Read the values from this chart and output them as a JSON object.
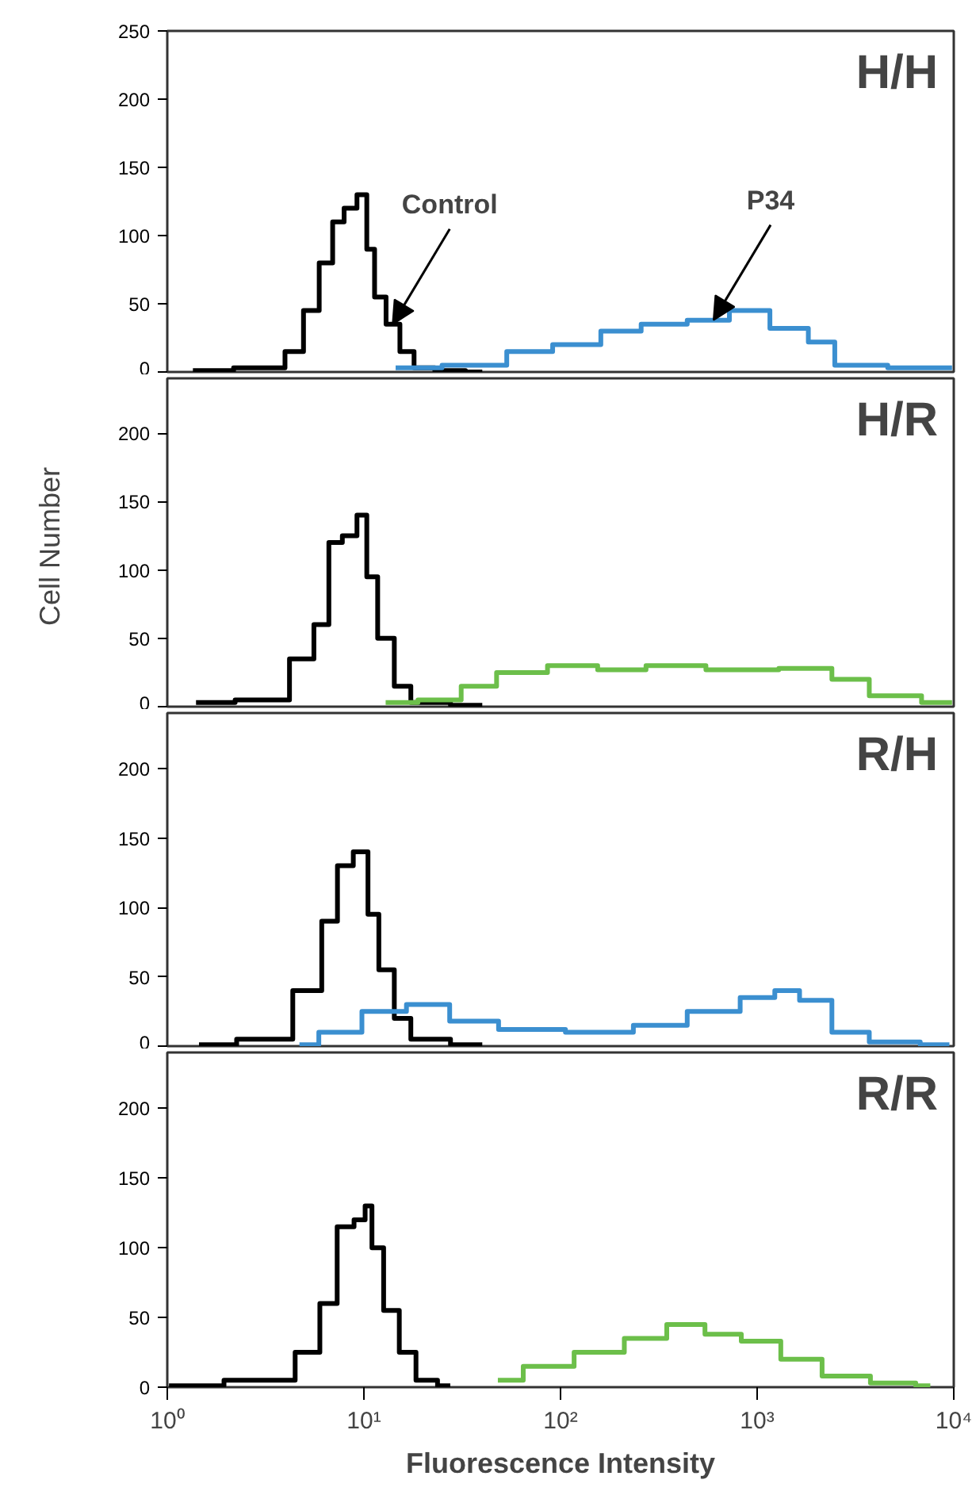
{
  "chart_data": [
    {
      "type": "step",
      "title": "H/H",
      "xlim": [
        1,
        10000
      ],
      "ylim": [
        0,
        250
      ],
      "yticks": [
        0,
        50,
        100,
        150,
        200,
        250
      ],
      "log": "x",
      "tick_labels": "y",
      "annotations": [
        {
          "text": "Control",
          "x": 14,
          "y": 35
        },
        {
          "text": "P34",
          "x": 600,
          "y": 38
        }
      ],
      "series": [
        {
          "color": "#000000",
          "x": [
            1.35,
            3.5,
            4.5,
            5.4,
            6.5,
            7.4,
            8.5,
            10,
            10.7,
            12,
            14,
            16.6,
            19.5,
            27,
            40
          ],
          "values": [
            1,
            3,
            15,
            45,
            80,
            110,
            120,
            130,
            90,
            55,
            35,
            15,
            3,
            1,
            0
          ]
        },
        {
          "color": "#3b8fd0",
          "x": [
            14.5,
            43,
            66,
            126,
            204,
            324,
            600,
            870,
            1550,
            2140,
            2880,
            7400,
            9800
          ],
          "values": [
            3,
            5,
            15,
            20,
            30,
            35,
            38,
            45,
            32,
            22,
            5,
            3,
            3
          ]
        }
      ]
    },
    {
      "type": "step",
      "title": "H/R",
      "ylabel": "Cell  Number",
      "xlim": [
        1,
        10000
      ],
      "ylim": [
        0,
        240
      ],
      "yticks": [
        0,
        50,
        100,
        150,
        200
      ],
      "log": "x",
      "tick_labels": "y",
      "series": [
        {
          "color": "#000000",
          "x": [
            1.4,
            3.5,
            5,
            6.2,
            7.1,
            8.5,
            10,
            10.7,
            12.9,
            15.8,
            19,
            40
          ],
          "values": [
            3,
            5,
            35,
            60,
            120,
            125,
            140,
            95,
            50,
            15,
            3,
            1
          ]
        },
        {
          "color": "#6cbf4a",
          "x": [
            12.9,
            27.5,
            35.5,
            63,
            117,
            204,
            363,
            830,
            2000,
            2880,
            4800,
            9800
          ],
          "values": [
            3,
            5,
            15,
            25,
            30,
            27,
            30,
            27,
            28,
            20,
            8,
            3
          ]
        }
      ]
    },
    {
      "type": "step",
      "title": "R/H",
      "xlim": [
        1,
        10000
      ],
      "ylim": [
        0,
        240
      ],
      "yticks": [
        0,
        50,
        100,
        150,
        200
      ],
      "log": "x",
      "tick_labels": "y",
      "series": [
        {
          "color": "#000000",
          "x": [
            1.45,
            3.5,
            5.4,
            6.9,
            7.8,
            10,
            11,
            12.9,
            15.8,
            19,
            40
          ],
          "values": [
            1,
            5,
            40,
            90,
            130,
            140,
            95,
            55,
            20,
            5,
            1
          ]
        },
        {
          "color": "#3b8fd0",
          "x": [
            4.7,
            7.4,
            12.9,
            21,
            35.5,
            66,
            170,
            324,
            600,
            1120,
            1350,
            2000,
            2880,
            4800,
            9500
          ],
          "values": [
            1,
            10,
            25,
            30,
            18,
            12,
            10,
            15,
            25,
            35,
            40,
            33,
            10,
            3,
            1
          ]
        }
      ]
    },
    {
      "type": "step",
      "title": "R/R",
      "xlabel": "Fluorescence Intensity",
      "xlim": [
        1,
        10000
      ],
      "ylim": [
        0,
        240
      ],
      "yticks": [
        0,
        50,
        100,
        150,
        200
      ],
      "log": "x",
      "xticks": [
        {
          "value": 1,
          "label": "10⁰"
        },
        {
          "value": 10,
          "label": "10¹"
        },
        {
          "value": 100,
          "label": "10²"
        },
        {
          "value": 1000,
          "label": "10³"
        },
        {
          "value": 10000,
          "label": "10⁴"
        }
      ],
      "series": [
        {
          "color": "#000000",
          "x": [
            1.02,
            3.7,
            5.4,
            6.6,
            8.1,
            9.8,
            10.5,
            11.5,
            13.8,
            16.6,
            20.4,
            27.5
          ],
          "values": [
            1,
            5,
            25,
            60,
            115,
            120,
            130,
            100,
            55,
            25,
            5,
            1
          ]
        },
        {
          "color": "#6cbf4a",
          "x": [
            48,
            87,
            158,
            282,
            427,
            690,
            1000,
            1740,
            2630,
            5400,
            7600
          ],
          "values": [
            5,
            15,
            25,
            35,
            45,
            38,
            33,
            20,
            8,
            3,
            1
          ]
        }
      ]
    }
  ]
}
